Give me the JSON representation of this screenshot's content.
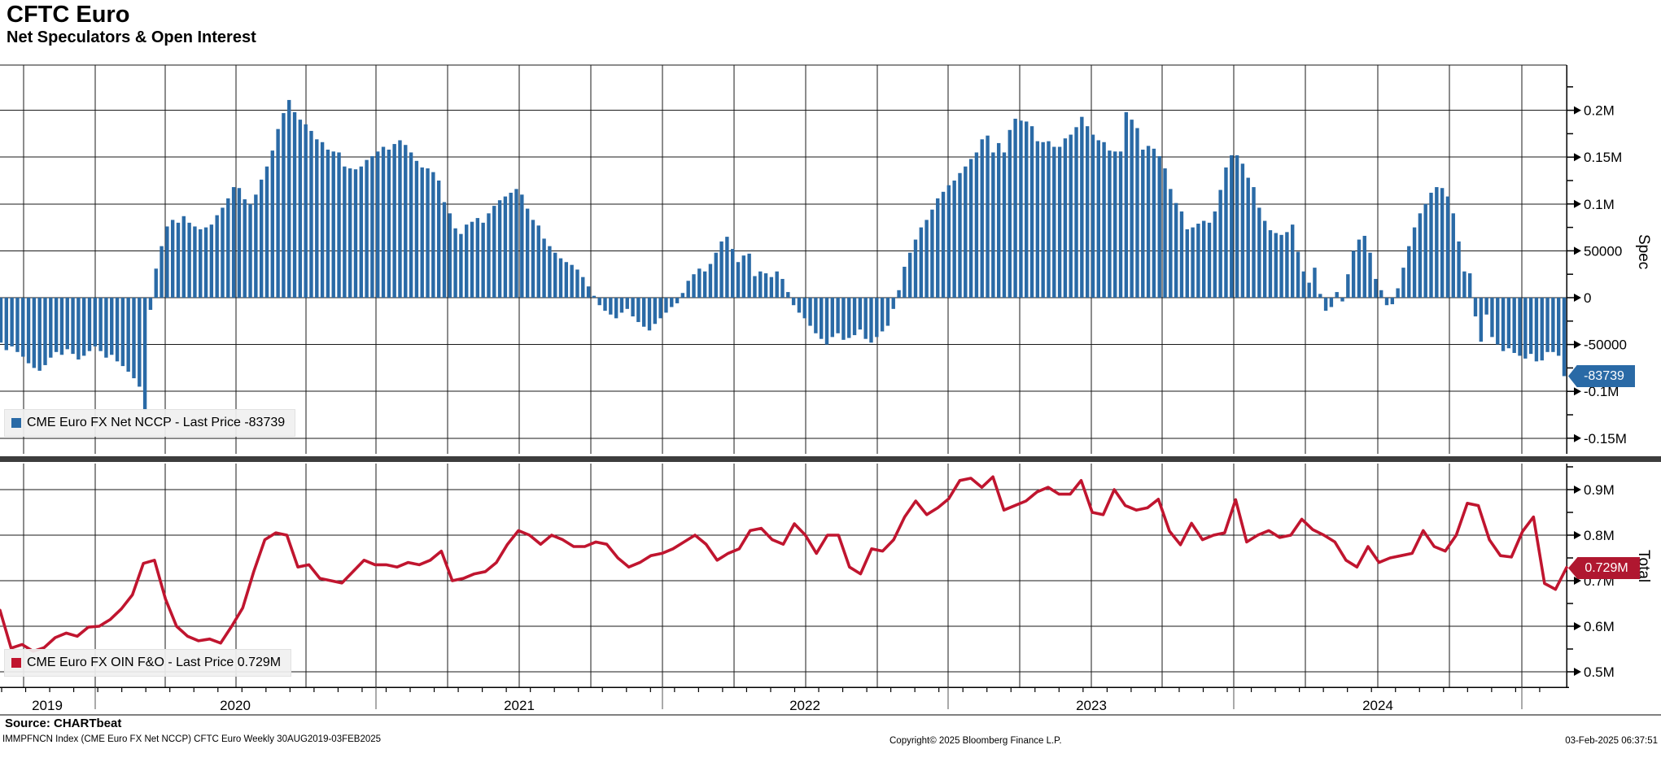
{
  "title": "CFTC Euro",
  "subtitle": "Net Speculators & Open Interest",
  "source_label": "Source: CHARTbeat",
  "footer_left": "IMMPFNCN Index (CME Euro FX Net NCCP) CFTC Euro  Weekly 30AUG2019-03FEB2025",
  "footer_center": "Copyright© 2025 Bloomberg Finance L.P.",
  "footer_right": "03-Feb-2025 06:37:51",
  "colors": {
    "bar": "#2a6aa6",
    "line": "#c0152f",
    "spec_tag_bg": "#2a6aa6",
    "total_tag_bg": "#b01730",
    "grid": "#1a1a1a",
    "divider": "#3d3d3d",
    "legend_bg": "#f0f0f0"
  },
  "top_panel": {
    "legend_label": "CME Euro FX Net NCCP - Last Price -83739",
    "axis_title": "Spec",
    "last_price_label": "-83739",
    "major_ticks": [
      [
        "0.2M",
        200
      ],
      [
        "0.15M",
        150
      ],
      [
        "0.1M",
        100
      ],
      [
        "50000",
        50
      ],
      [
        "0",
        0
      ],
      [
        "-50000",
        -50
      ],
      [
        "-0.1M",
        -100
      ],
      [
        "-0.15M",
        -150
      ]
    ],
    "minor_ticks_thousands": [
      225,
      175,
      125,
      75,
      25,
      -25,
      -75,
      -125
    ]
  },
  "bottom_panel": {
    "legend_label": "CME Euro FX OIN F&O - Last Price 0.729M",
    "axis_title": "Total",
    "last_price_label": "0.729M",
    "major_ticks": [
      [
        "0.9M",
        0.9
      ],
      [
        "0.8M",
        0.8
      ],
      [
        "0.7M",
        0.7
      ],
      [
        "0.6M",
        0.6
      ],
      [
        "0.5M",
        0.5
      ]
    ],
    "minor_ticks_millions": [
      0.95,
      0.85,
      0.75,
      0.65,
      0.55
    ]
  },
  "x_axis": {
    "year_labels": [
      [
        "2019",
        58
      ],
      [
        "2020",
        289
      ],
      [
        "2021",
        638
      ],
      [
        "2022",
        989
      ],
      [
        "2023",
        1341
      ],
      [
        "2024",
        1693
      ]
    ],
    "year_boundaries": [
      117,
      462,
      814,
      1165,
      1516,
      1870
    ],
    "quarter_gridlines": [
      29,
      117,
      203,
      290,
      376,
      462,
      550,
      638,
      726,
      814,
      902,
      990,
      1078,
      1165,
      1253,
      1341,
      1428,
      1516,
      1604,
      1693,
      1781,
      1870
    ]
  },
  "chart_data": [
    {
      "type": "bar",
      "name": "CME Euro FX Net NCCP",
      "frequency": "weekly",
      "x_start": "30AUG2019",
      "x_end": "03FEB2025",
      "unit": "contracts (thousands)",
      "last_value": -83739,
      "ylim_thousands": [
        -166,
        250
      ],
      "values_thousands": [
        -48,
        -56,
        -52,
        -58,
        -63,
        -70,
        -75,
        -78,
        -72,
        -64,
        -58,
        -61,
        -55,
        -60,
        -66,
        -62,
        -57,
        -52,
        -57,
        -64,
        -61,
        -68,
        -73,
        -79,
        -86,
        -95,
        -120,
        -13,
        31,
        55,
        76,
        83,
        80,
        87,
        80,
        76,
        73,
        75,
        78,
        88,
        96,
        106,
        118,
        117,
        105,
        100,
        110,
        126,
        140,
        157,
        180,
        197,
        211,
        198,
        190,
        185,
        178,
        169,
        166,
        158,
        156,
        155,
        140,
        138,
        137,
        140,
        147,
        151,
        156,
        161,
        158,
        164,
        168,
        163,
        155,
        146,
        139,
        138,
        134,
        125,
        102,
        90,
        74,
        68,
        78,
        81,
        85,
        80,
        90,
        98,
        104,
        108,
        112,
        116,
        110,
        95,
        83,
        77,
        63,
        55,
        48,
        42,
        38,
        35,
        30,
        22,
        12,
        2,
        -8,
        -14,
        -18,
        -22,
        -16,
        -12,
        -20,
        -26,
        -31,
        -35,
        -28,
        -22,
        -16,
        -10,
        -6,
        5,
        18,
        25,
        31,
        28,
        36,
        48,
        60,
        65,
        52,
        38,
        45,
        47,
        23,
        28,
        26,
        22,
        28,
        20,
        6,
        -8,
        -16,
        -22,
        -30,
        -38,
        -44,
        -50,
        -42,
        -38,
        -45,
        -43,
        -40,
        -34,
        -44,
        -48,
        -42,
        -36,
        -30,
        -12,
        8,
        33,
        48,
        62,
        75,
        83,
        94,
        106,
        113,
        120,
        125,
        133,
        140,
        148,
        155,
        169,
        173,
        155,
        165,
        155,
        179,
        191,
        189,
        188,
        183,
        167,
        166,
        167,
        161,
        161,
        170,
        174,
        182,
        193,
        183,
        174,
        168,
        166,
        157,
        156,
        156,
        198,
        190,
        181,
        158,
        162,
        159,
        151,
        138,
        116,
        101,
        92,
        73,
        75,
        79,
        82,
        80,
        92,
        115,
        139,
        152,
        152,
        143,
        128,
        118,
        96,
        82,
        72,
        69,
        67,
        70,
        78,
        49,
        28,
        16,
        32,
        4,
        -14,
        -10,
        6,
        -4,
        25,
        50,
        62,
        66,
        48,
        20,
        8,
        -8,
        -7,
        10,
        32,
        55,
        75,
        90,
        100,
        112,
        118,
        117,
        108,
        90,
        60,
        28,
        26,
        -20,
        -47,
        -18,
        -42,
        -50,
        -57,
        -54,
        -59,
        -62,
        -65,
        -60,
        -68,
        -67,
        -58,
        -58,
        -62,
        -83.739
      ]
    },
    {
      "type": "line",
      "name": "CME Euro FX OIN F&O",
      "frequency": "biweekly",
      "x_start": "30AUG2019",
      "x_end": "03FEB2025",
      "unit": "contracts (millions)",
      "last_value": 0.729,
      "ylim_millions": [
        0.466,
        0.957
      ],
      "values_millions": [
        0.635,
        0.552,
        0.56,
        0.545,
        0.553,
        0.575,
        0.585,
        0.578,
        0.598,
        0.6,
        0.615,
        0.638,
        0.669,
        0.738,
        0.745,
        0.66,
        0.6,
        0.578,
        0.568,
        0.572,
        0.563,
        0.6,
        0.64,
        0.72,
        0.79,
        0.805,
        0.8,
        0.73,
        0.735,
        0.705,
        0.7,
        0.695,
        0.72,
        0.745,
        0.735,
        0.735,
        0.73,
        0.74,
        0.735,
        0.745,
        0.765,
        0.7,
        0.705,
        0.715,
        0.72,
        0.74,
        0.78,
        0.81,
        0.8,
        0.78,
        0.8,
        0.79,
        0.775,
        0.775,
        0.785,
        0.78,
        0.75,
        0.73,
        0.74,
        0.755,
        0.76,
        0.77,
        0.785,
        0.8,
        0.78,
        0.745,
        0.76,
        0.77,
        0.81,
        0.815,
        0.79,
        0.78,
        0.825,
        0.8,
        0.76,
        0.8,
        0.8,
        0.73,
        0.715,
        0.77,
        0.765,
        0.79,
        0.84,
        0.875,
        0.845,
        0.86,
        0.88,
        0.92,
        0.925,
        0.905,
        0.928,
        0.855,
        0.865,
        0.875,
        0.895,
        0.905,
        0.89,
        0.89,
        0.92,
        0.85,
        0.845,
        0.9,
        0.865,
        0.855,
        0.86,
        0.879,
        0.809,
        0.779,
        0.826,
        0.79,
        0.8,
        0.805,
        0.878,
        0.785,
        0.8,
        0.81,
        0.795,
        0.8,
        0.835,
        0.812,
        0.8,
        0.785,
        0.745,
        0.73,
        0.775,
        0.74,
        0.75,
        0.755,
        0.76,
        0.81,
        0.775,
        0.765,
        0.8,
        0.87,
        0.865,
        0.79,
        0.755,
        0.752,
        0.808,
        0.84,
        0.694,
        0.681,
        0.729
      ]
    }
  ]
}
